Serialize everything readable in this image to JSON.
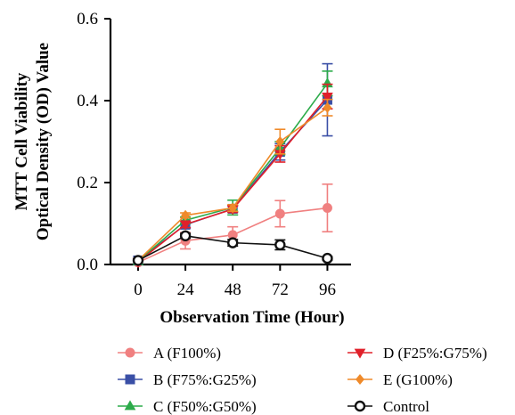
{
  "chart_data": {
    "type": "line",
    "xlabel": "Observation Time (Hour)",
    "ylabel": [
      "MTT Cell Viability",
      "Optical Density (OD) Value"
    ],
    "x": [
      0,
      24,
      48,
      72,
      96
    ],
    "x_ticks": [
      "0",
      "24",
      "48",
      "72",
      "96"
    ],
    "y_ticks": [
      "0.0",
      "0.2",
      "0.4",
      "0.6"
    ],
    "xlim": [
      -14,
      108
    ],
    "ylim": [
      0,
      0.6
    ],
    "grid": false,
    "legend_position": "bottom",
    "series": [
      {
        "name": "A (F100%)",
        "color": "#f08080",
        "marker": "circle-filled",
        "values": [
          0.005,
          0.058,
          0.072,
          0.124,
          0.138
        ],
        "errors": [
          0.0,
          0.02,
          0.02,
          0.032,
          0.058
        ]
      },
      {
        "name": "B (F75%:G25%)",
        "color": "#3a4fa6",
        "marker": "square",
        "values": [
          0.01,
          0.097,
          0.136,
          0.275,
          0.402
        ],
        "errors": [
          0.0,
          0.008,
          0.008,
          0.02,
          0.088
        ]
      },
      {
        "name": "C (F50%:G50%)",
        "color": "#2cab4a",
        "marker": "triangle-up",
        "values": [
          0.008,
          0.108,
          0.139,
          0.284,
          0.442
        ],
        "errors": [
          0.0,
          0.008,
          0.018,
          0.016,
          0.03
        ]
      },
      {
        "name": "D (F25%:G75%)",
        "color": "#e0202a",
        "marker": "triangle-down",
        "values": [
          0.006,
          0.098,
          0.135,
          0.27,
          0.41
        ],
        "errors": [
          0.0,
          0.008,
          0.008,
          0.02,
          0.03
        ]
      },
      {
        "name": "E (G100%)",
        "color": "#ef8a2a",
        "marker": "diamond",
        "values": [
          0.01,
          0.12,
          0.138,
          0.3,
          0.383
        ],
        "errors": [
          0.0,
          0.006,
          0.008,
          0.03,
          0.02
        ]
      },
      {
        "name": "Control",
        "color": "#111111",
        "marker": "circle-open",
        "values": [
          0.01,
          0.07,
          0.053,
          0.048,
          0.015
        ],
        "errors": [
          0.0,
          0.006,
          0.008,
          0.012,
          0.004
        ]
      }
    ]
  }
}
